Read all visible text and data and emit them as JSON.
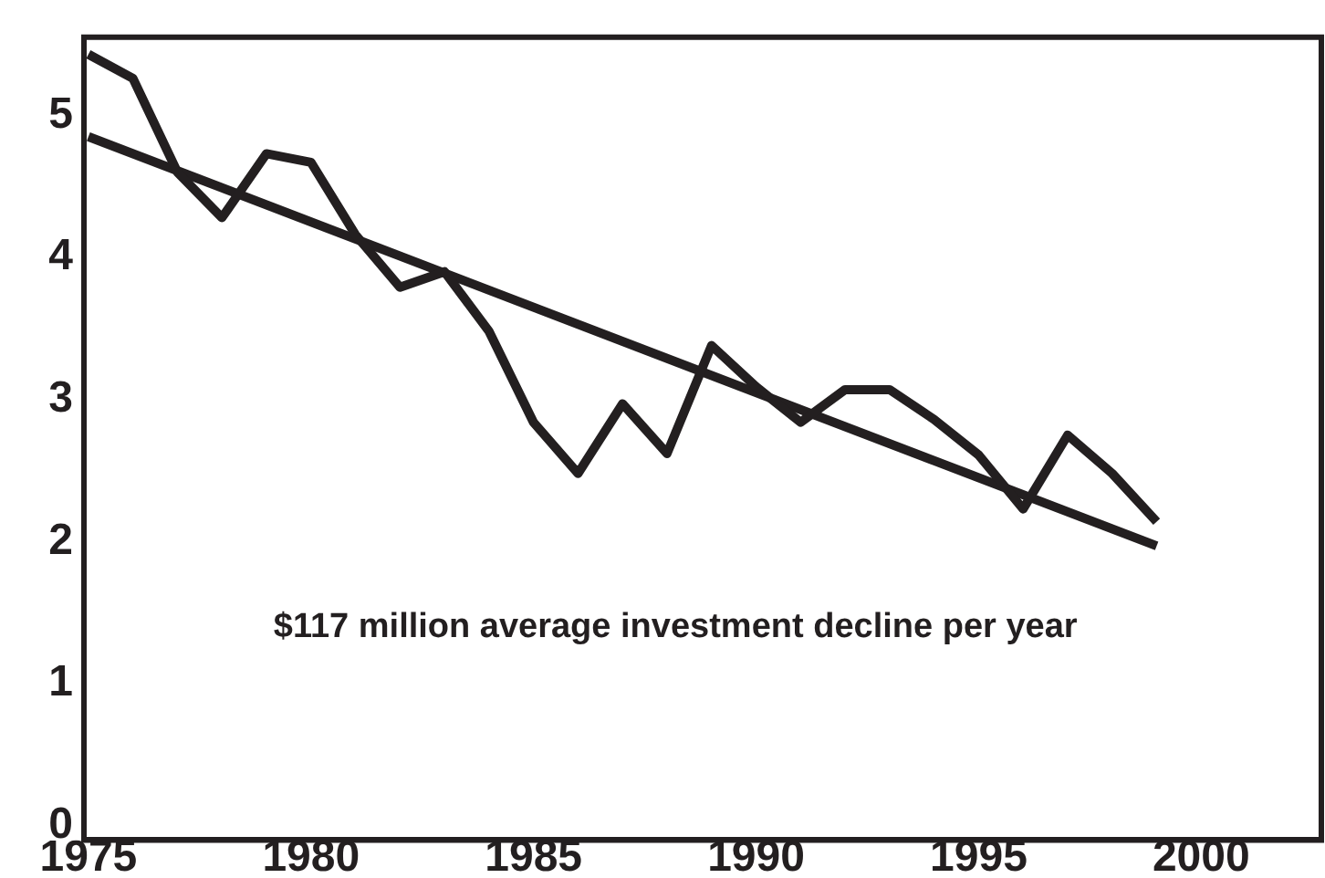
{
  "chart_data": {
    "type": "line",
    "x": [
      1975,
      1976,
      1977,
      1978,
      1979,
      1980,
      1981,
      1982,
      1983,
      1984,
      1985,
      1986,
      1987,
      1988,
      1989,
      1990,
      1991,
      1992,
      1993,
      1994,
      1995,
      1996,
      1997,
      1998,
      1999
    ],
    "series": [
      {
        "color": "#231f20",
        "values": [
          5.43,
          5.26,
          4.6,
          4.28,
          4.73,
          4.67,
          4.16,
          3.79,
          3.9,
          3.48,
          2.84,
          2.48,
          2.97,
          2.62,
          3.38,
          3.09,
          2.84,
          3.07,
          3.07,
          2.86,
          2.61,
          2.23,
          2.75,
          2.48,
          2.14
        ]
      },
      {
        "type": "line",
        "color": "#231f20",
        "x": [
          1975,
          1999
        ],
        "values": [
          4.85,
          1.97
        ]
      }
    ],
    "xlim": [
      1974.9,
      2002.7
    ],
    "xticks": [
      1975,
      1980,
      1985,
      1990,
      1995,
      2000
    ],
    "ylim": [
      -0.1,
      5.55
    ],
    "yticks": [
      0,
      1,
      2,
      3,
      4,
      5
    ],
    "annotations": [
      "$117 million average investment decline per year"
    ],
    "grid": false,
    "legend": false,
    "marker": "none",
    "line_style": "solid"
  }
}
